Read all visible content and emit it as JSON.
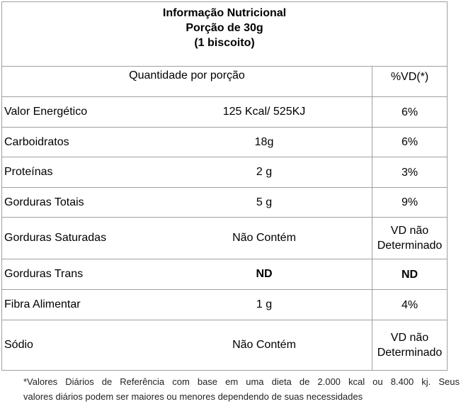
{
  "title": {
    "line1": "Informação Nutricional",
    "line2": "Porção de 30g",
    "line3": "(1 biscoito)"
  },
  "header": {
    "quantity": "Quantidade por porção",
    "vd": "%VD(*)"
  },
  "rows": [
    {
      "name": "Valor Energético",
      "qty": "125 Kcal/ 525KJ",
      "vd": "6%"
    },
    {
      "name": "Carboidratos",
      "qty": "18g",
      "vd": "6%"
    },
    {
      "name": "Proteínas",
      "qty": "2 g",
      "vd": "3%"
    },
    {
      "name": "Gorduras Totais",
      "qty": "5 g",
      "vd": "9%"
    },
    {
      "name": "Gorduras Saturadas",
      "qty": "Não Contém",
      "vd_line1": "VD não",
      "vd_line2": "Determinado"
    },
    {
      "name": "Gorduras Trans",
      "qty": "ND",
      "vd": "ND"
    },
    {
      "name": "Fibra Alimentar",
      "qty": "1 g",
      "vd": "4%"
    },
    {
      "name": "Sódio",
      "qty": "Não Contém",
      "vd_line1": "VD não",
      "vd_line2": "Determinado"
    }
  ],
  "footnote": {
    "line1": "*Valores Diários de Referência com base em uma dieta de 2.000 kcal ou 8.400 kj. Seus",
    "line2": "valores  diários podem ser maiores ou menores dependendo de suas necessidades"
  }
}
